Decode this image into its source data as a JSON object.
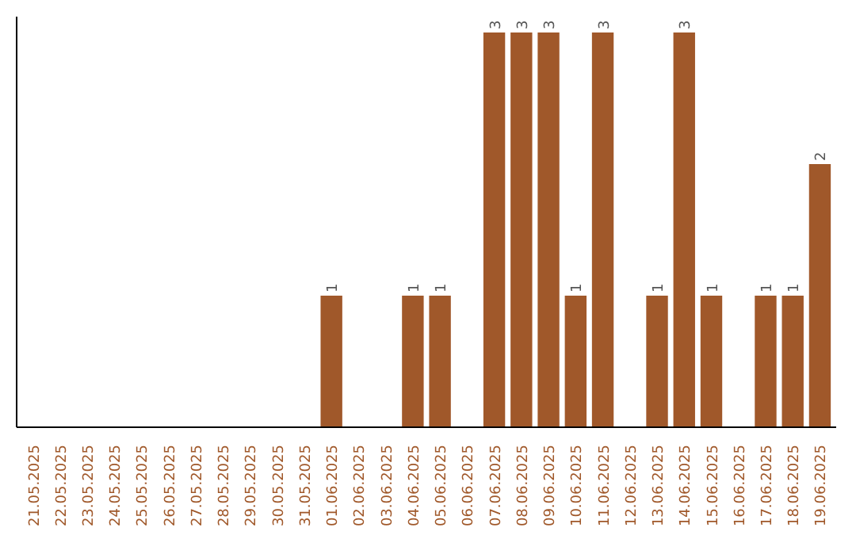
{
  "chart_data": {
    "type": "bar",
    "categories": [
      "21.05.2025",
      "22.05.2025",
      "23.05.2025",
      "24.05.2025",
      "25.05.2025",
      "26.05.2025",
      "27.05.2025",
      "28.05.2025",
      "29.05.2025",
      "30.05.2025",
      "31.05.2025",
      "01.06.2025",
      "02.06.2025",
      "03.06.2025",
      "04.06.2025",
      "05.06.2025",
      "06.06.2025",
      "07.06.2025",
      "08.06.2025",
      "09.06.2025",
      "10.06.2025",
      "11.06.2025",
      "12.06.2025",
      "13.06.2025",
      "14.06.2025",
      "15.06.2025",
      "16.06.2025",
      "17.06.2025",
      "18.06.2025",
      "19.06.2025"
    ],
    "values": [
      0,
      0,
      0,
      0,
      0,
      0,
      0,
      0,
      0,
      0,
      0,
      1,
      0,
      0,
      1,
      1,
      0,
      3,
      3,
      3,
      1,
      3,
      0,
      1,
      3,
      1,
      0,
      1,
      1,
      2
    ],
    "value_labels": [
      null,
      null,
      null,
      null,
      null,
      null,
      null,
      null,
      null,
      null,
      null,
      "1",
      null,
      null,
      "1",
      "1",
      null,
      "3",
      "3",
      "3",
      "1",
      "3",
      null,
      "1",
      "3",
      "1",
      null,
      "1",
      "1",
      "2"
    ],
    "color": "#a0582a",
    "tick_labels": "x"
  }
}
